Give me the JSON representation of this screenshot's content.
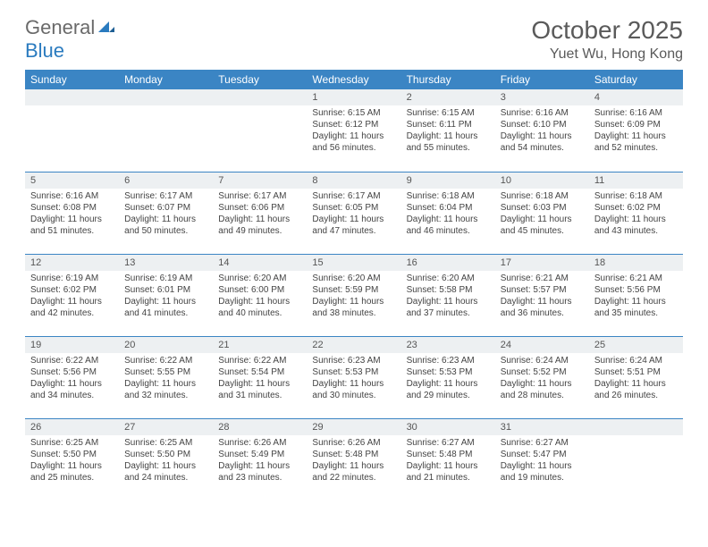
{
  "logo": {
    "text1": "General",
    "text2": "Blue"
  },
  "title": "October 2025",
  "location": "Yuet Wu, Hong Kong",
  "colors": {
    "header_bg": "#3b85c4",
    "header_text": "#ffffff",
    "daynum_bg": "#edf0f2",
    "border": "#3b85c4",
    "logo_gray": "#6a6a6a",
    "logo_blue": "#2a7bbf"
  },
  "dayNames": [
    "Sunday",
    "Monday",
    "Tuesday",
    "Wednesday",
    "Thursday",
    "Friday",
    "Saturday"
  ],
  "weeks": [
    [
      {
        "num": "",
        "lines": []
      },
      {
        "num": "",
        "lines": []
      },
      {
        "num": "",
        "lines": []
      },
      {
        "num": "1",
        "lines": [
          "Sunrise: 6:15 AM",
          "Sunset: 6:12 PM",
          "Daylight: 11 hours and 56 minutes."
        ]
      },
      {
        "num": "2",
        "lines": [
          "Sunrise: 6:15 AM",
          "Sunset: 6:11 PM",
          "Daylight: 11 hours and 55 minutes."
        ]
      },
      {
        "num": "3",
        "lines": [
          "Sunrise: 6:16 AM",
          "Sunset: 6:10 PM",
          "Daylight: 11 hours and 54 minutes."
        ]
      },
      {
        "num": "4",
        "lines": [
          "Sunrise: 6:16 AM",
          "Sunset: 6:09 PM",
          "Daylight: 11 hours and 52 minutes."
        ]
      }
    ],
    [
      {
        "num": "5",
        "lines": [
          "Sunrise: 6:16 AM",
          "Sunset: 6:08 PM",
          "Daylight: 11 hours and 51 minutes."
        ]
      },
      {
        "num": "6",
        "lines": [
          "Sunrise: 6:17 AM",
          "Sunset: 6:07 PM",
          "Daylight: 11 hours and 50 minutes."
        ]
      },
      {
        "num": "7",
        "lines": [
          "Sunrise: 6:17 AM",
          "Sunset: 6:06 PM",
          "Daylight: 11 hours and 49 minutes."
        ]
      },
      {
        "num": "8",
        "lines": [
          "Sunrise: 6:17 AM",
          "Sunset: 6:05 PM",
          "Daylight: 11 hours and 47 minutes."
        ]
      },
      {
        "num": "9",
        "lines": [
          "Sunrise: 6:18 AM",
          "Sunset: 6:04 PM",
          "Daylight: 11 hours and 46 minutes."
        ]
      },
      {
        "num": "10",
        "lines": [
          "Sunrise: 6:18 AM",
          "Sunset: 6:03 PM",
          "Daylight: 11 hours and 45 minutes."
        ]
      },
      {
        "num": "11",
        "lines": [
          "Sunrise: 6:18 AM",
          "Sunset: 6:02 PM",
          "Daylight: 11 hours and 43 minutes."
        ]
      }
    ],
    [
      {
        "num": "12",
        "lines": [
          "Sunrise: 6:19 AM",
          "Sunset: 6:02 PM",
          "Daylight: 11 hours and 42 minutes."
        ]
      },
      {
        "num": "13",
        "lines": [
          "Sunrise: 6:19 AM",
          "Sunset: 6:01 PM",
          "Daylight: 11 hours and 41 minutes."
        ]
      },
      {
        "num": "14",
        "lines": [
          "Sunrise: 6:20 AM",
          "Sunset: 6:00 PM",
          "Daylight: 11 hours and 40 minutes."
        ]
      },
      {
        "num": "15",
        "lines": [
          "Sunrise: 6:20 AM",
          "Sunset: 5:59 PM",
          "Daylight: 11 hours and 38 minutes."
        ]
      },
      {
        "num": "16",
        "lines": [
          "Sunrise: 6:20 AM",
          "Sunset: 5:58 PM",
          "Daylight: 11 hours and 37 minutes."
        ]
      },
      {
        "num": "17",
        "lines": [
          "Sunrise: 6:21 AM",
          "Sunset: 5:57 PM",
          "Daylight: 11 hours and 36 minutes."
        ]
      },
      {
        "num": "18",
        "lines": [
          "Sunrise: 6:21 AM",
          "Sunset: 5:56 PM",
          "Daylight: 11 hours and 35 minutes."
        ]
      }
    ],
    [
      {
        "num": "19",
        "lines": [
          "Sunrise: 6:22 AM",
          "Sunset: 5:56 PM",
          "Daylight: 11 hours and 34 minutes."
        ]
      },
      {
        "num": "20",
        "lines": [
          "Sunrise: 6:22 AM",
          "Sunset: 5:55 PM",
          "Daylight: 11 hours and 32 minutes."
        ]
      },
      {
        "num": "21",
        "lines": [
          "Sunrise: 6:22 AM",
          "Sunset: 5:54 PM",
          "Daylight: 11 hours and 31 minutes."
        ]
      },
      {
        "num": "22",
        "lines": [
          "Sunrise: 6:23 AM",
          "Sunset: 5:53 PM",
          "Daylight: 11 hours and 30 minutes."
        ]
      },
      {
        "num": "23",
        "lines": [
          "Sunrise: 6:23 AM",
          "Sunset: 5:53 PM",
          "Daylight: 11 hours and 29 minutes."
        ]
      },
      {
        "num": "24",
        "lines": [
          "Sunrise: 6:24 AM",
          "Sunset: 5:52 PM",
          "Daylight: 11 hours and 28 minutes."
        ]
      },
      {
        "num": "25",
        "lines": [
          "Sunrise: 6:24 AM",
          "Sunset: 5:51 PM",
          "Daylight: 11 hours and 26 minutes."
        ]
      }
    ],
    [
      {
        "num": "26",
        "lines": [
          "Sunrise: 6:25 AM",
          "Sunset: 5:50 PM",
          "Daylight: 11 hours and 25 minutes."
        ]
      },
      {
        "num": "27",
        "lines": [
          "Sunrise: 6:25 AM",
          "Sunset: 5:50 PM",
          "Daylight: 11 hours and 24 minutes."
        ]
      },
      {
        "num": "28",
        "lines": [
          "Sunrise: 6:26 AM",
          "Sunset: 5:49 PM",
          "Daylight: 11 hours and 23 minutes."
        ]
      },
      {
        "num": "29",
        "lines": [
          "Sunrise: 6:26 AM",
          "Sunset: 5:48 PM",
          "Daylight: 11 hours and 22 minutes."
        ]
      },
      {
        "num": "30",
        "lines": [
          "Sunrise: 6:27 AM",
          "Sunset: 5:48 PM",
          "Daylight: 11 hours and 21 minutes."
        ]
      },
      {
        "num": "31",
        "lines": [
          "Sunrise: 6:27 AM",
          "Sunset: 5:47 PM",
          "Daylight: 11 hours and 19 minutes."
        ]
      },
      {
        "num": "",
        "lines": []
      }
    ]
  ]
}
